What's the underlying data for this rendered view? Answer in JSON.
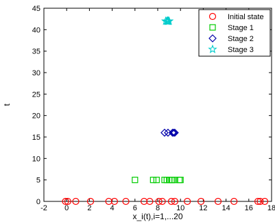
{
  "chart_data": {
    "type": "scatter",
    "title": "",
    "xlabel": "x_i(t),i=1,...20",
    "ylabel": "t",
    "xlim": [
      -2,
      18
    ],
    "ylim": [
      0,
      45
    ],
    "xticks": [
      -2,
      0,
      2,
      4,
      6,
      8,
      10,
      12,
      14,
      16,
      18
    ],
    "yticks": [
      0,
      5,
      10,
      15,
      20,
      25,
      30,
      35,
      40,
      45
    ],
    "grid": false,
    "legend_position": "top-right",
    "series": [
      {
        "name": "Initial state",
        "marker": "circle",
        "color": "#ff0000",
        "y": 0,
        "x": [
          -0.1,
          0.1,
          0.8,
          2.1,
          3.7,
          4.2,
          5.2,
          6.8,
          7.3,
          8.1,
          8.4,
          9.2,
          9.5,
          10.6,
          11.8,
          13.3,
          14.7,
          16.8,
          17.0,
          17.4
        ]
      },
      {
        "name": "Stage 1",
        "marker": "square",
        "color": "#00cc00",
        "y": 5,
        "x": [
          6.0,
          7.6,
          7.9,
          8.6,
          8.8,
          9.0,
          9.2,
          9.3,
          9.5,
          9.9,
          10.0
        ]
      },
      {
        "name": "Stage 2",
        "marker": "diamond",
        "color": "#0000aa",
        "y": 16,
        "x": [
          8.6,
          8.9,
          9.3,
          9.4,
          9.5
        ]
      },
      {
        "name": "Stage 3",
        "marker": "star",
        "color": "#00cccc",
        "y": 42,
        "x": [
          8.7,
          8.8,
          8.85,
          8.9,
          8.95,
          9.0
        ]
      }
    ]
  }
}
